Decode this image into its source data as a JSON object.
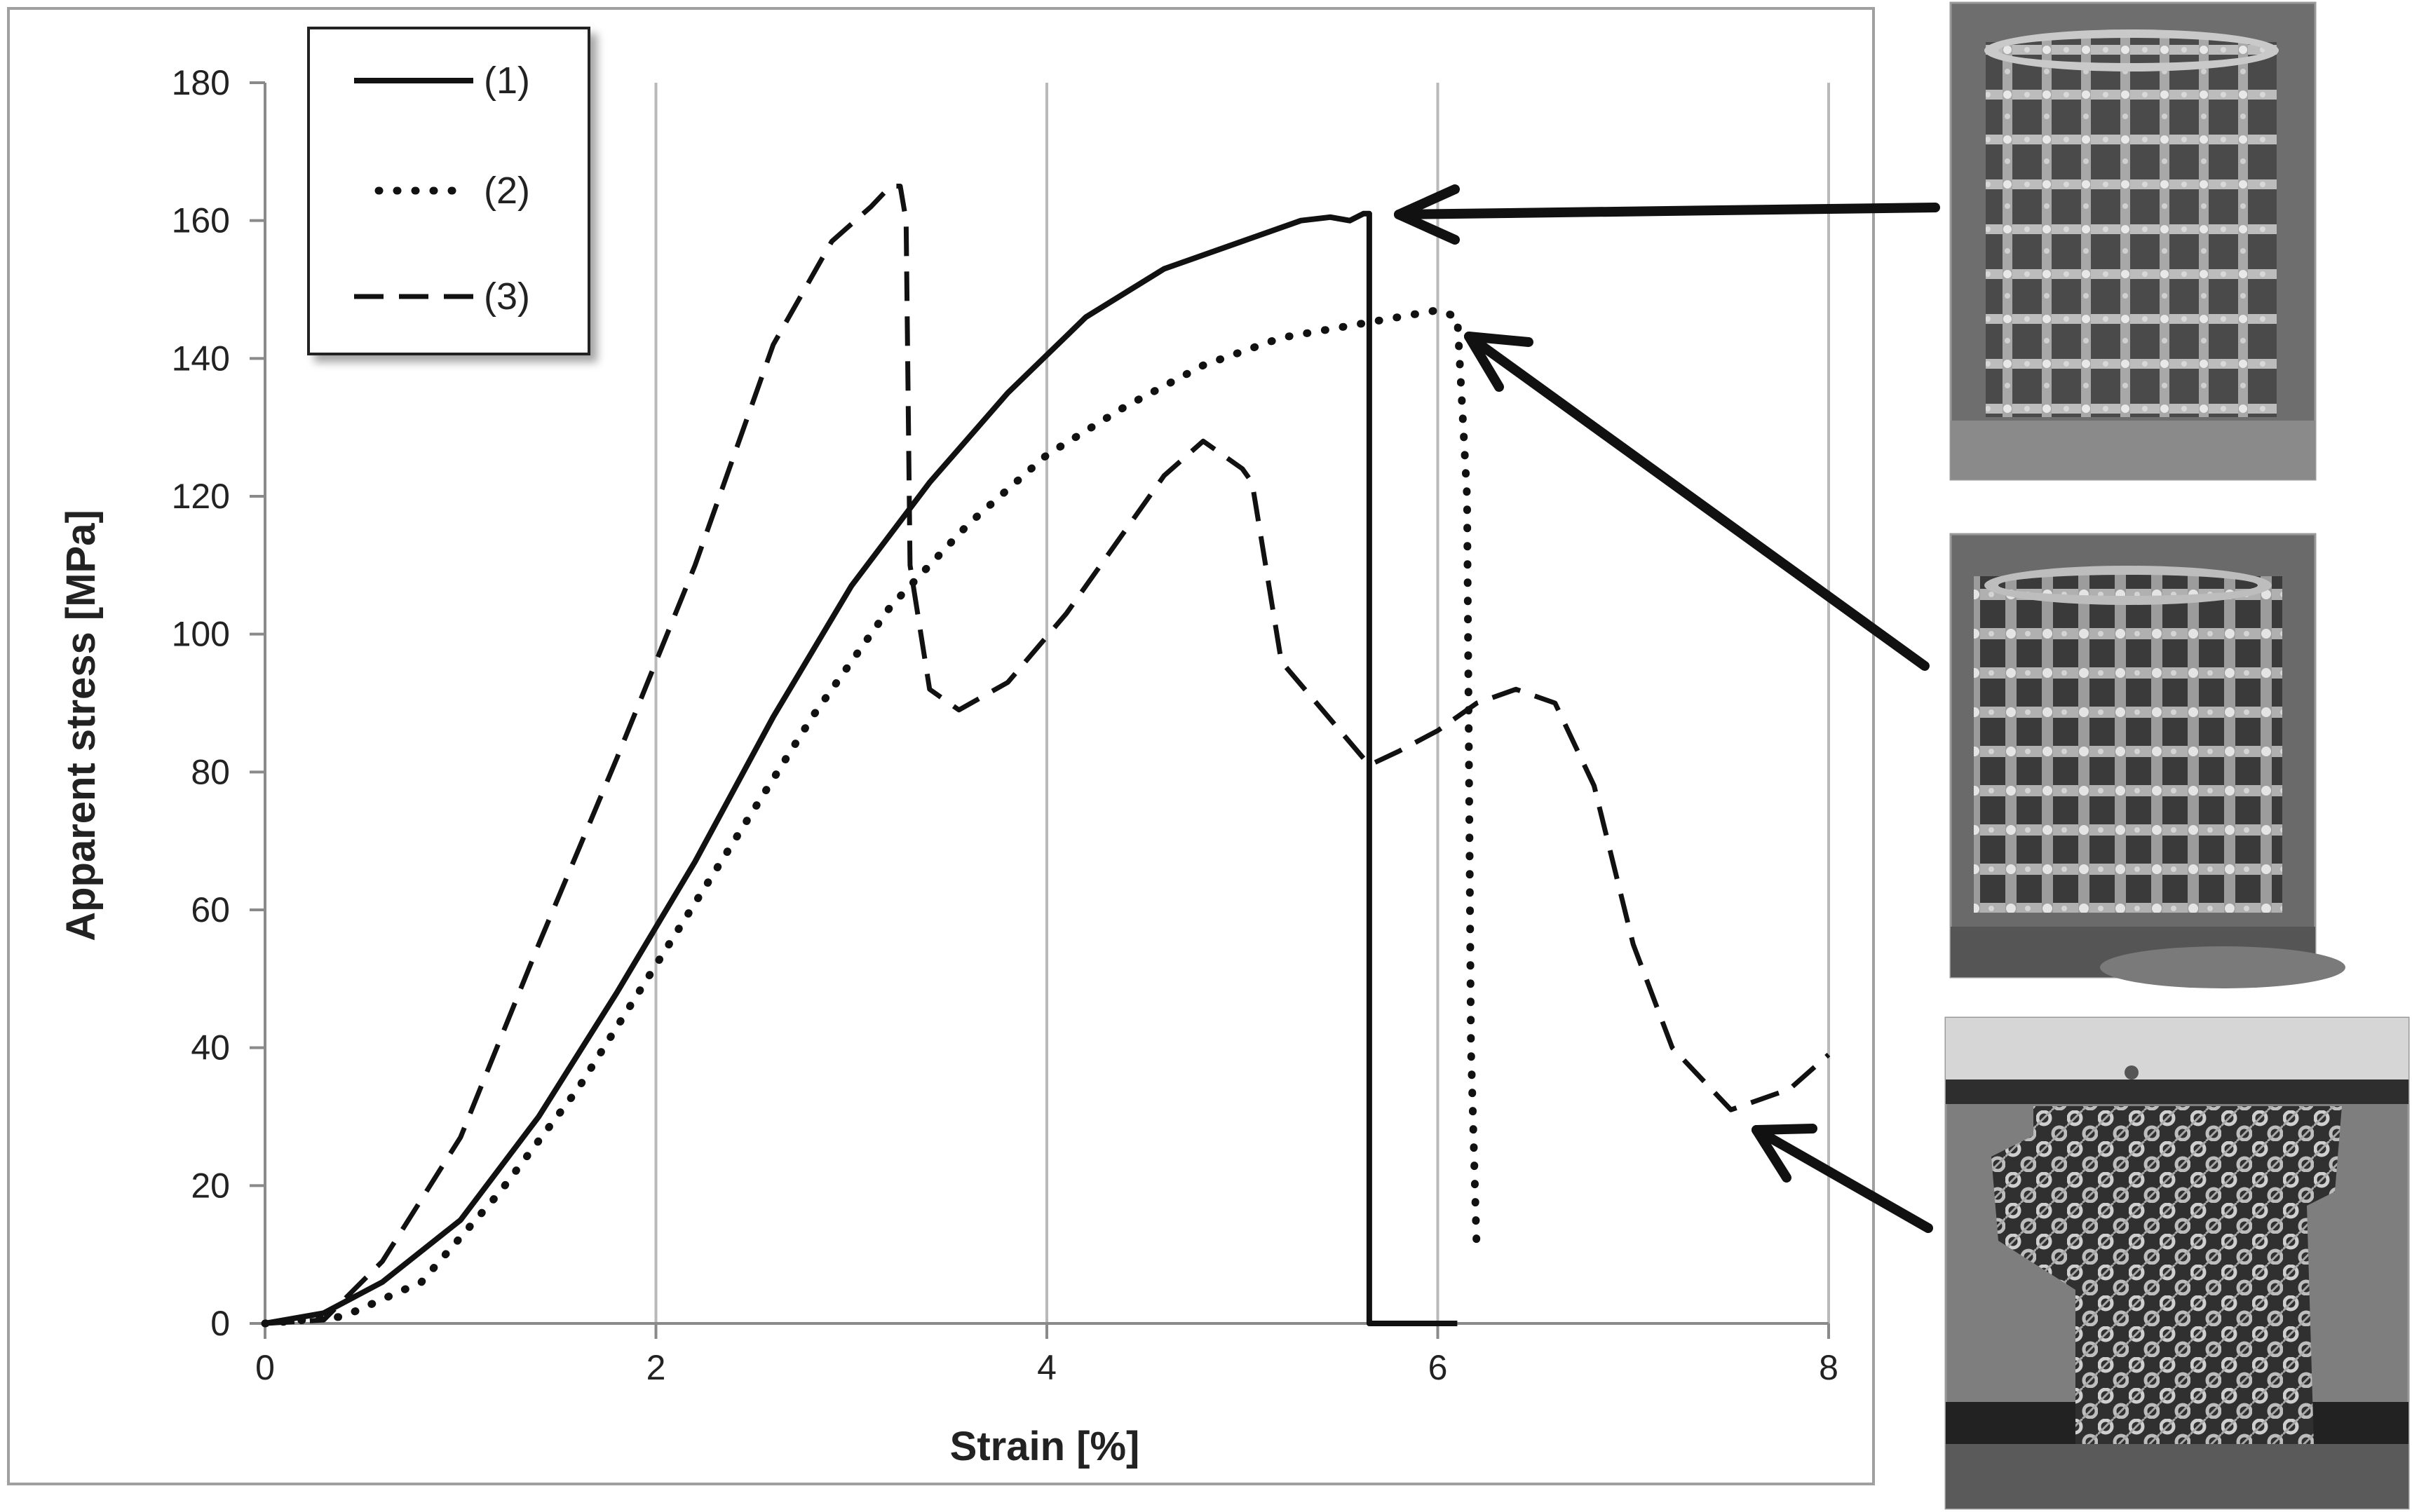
{
  "chart_data": {
    "type": "line",
    "title": "",
    "xlabel": "Strain [%]",
    "ylabel": "Apparent stress [MPa]",
    "xlim": [
      0,
      8
    ],
    "ylim": [
      0,
      180
    ],
    "x_ticks": [
      "0",
      "2",
      "4",
      "6",
      "8"
    ],
    "y_ticks": [
      "0",
      "20",
      "40",
      "60",
      "80",
      "100",
      "120",
      "140",
      "160",
      "180"
    ],
    "grid": "vertical",
    "legend_position": "top-left",
    "series": [
      {
        "name": "(1)",
        "style": "solid",
        "x": [
          0,
          0.3,
          0.6,
          1.0,
          1.4,
          1.8,
          2.2,
          2.6,
          3.0,
          3.4,
          3.8,
          4.2,
          4.6,
          5.0,
          5.3,
          5.45,
          5.55,
          5.62,
          5.65,
          5.65,
          5.65,
          6.1
        ],
        "y": [
          0,
          1.5,
          6,
          15,
          30,
          48,
          67,
          88,
          107,
          122,
          135,
          146,
          153,
          157,
          160,
          160.5,
          160,
          161,
          161,
          0,
          0,
          0
        ]
      },
      {
        "name": "(2)",
        "style": "dotted",
        "x": [
          0,
          0.4,
          0.8,
          1.2,
          1.6,
          2.0,
          2.4,
          2.8,
          3.2,
          3.6,
          4.0,
          4.4,
          4.8,
          5.2,
          5.6,
          6.0,
          6.1,
          6.15,
          6.17,
          6.2
        ],
        "y": [
          0,
          1,
          6,
          19,
          34,
          52,
          70,
          88,
          104,
          116,
          126,
          133,
          139,
          143,
          145,
          147,
          146,
          120,
          40,
          10
        ]
      },
      {
        "name": "(3)",
        "style": "dashed",
        "x": [
          0,
          0.3,
          0.6,
          1.0,
          1.4,
          1.8,
          2.2,
          2.6,
          2.9,
          3.1,
          3.2,
          3.25,
          3.28,
          3.3,
          3.4,
          3.55,
          3.8,
          4.1,
          4.4,
          4.6,
          4.8,
          5.0,
          5.05,
          5.2,
          5.5,
          5.65,
          5.8,
          6.0,
          6.2,
          6.4,
          6.6,
          6.8,
          7.0,
          7.2,
          7.5,
          7.8,
          8.0
        ],
        "y": [
          0,
          0.5,
          9,
          27,
          55,
          82,
          110,
          142,
          157,
          162,
          165,
          165,
          160,
          110,
          92,
          89,
          93,
          103,
          115,
          123,
          128,
          124,
          122,
          96,
          86,
          81,
          83,
          86,
          90,
          92,
          90,
          78,
          55,
          40,
          31,
          34,
          39
        ]
      }
    ]
  },
  "photos": [
    {
      "name": "specimen-1",
      "description_icon": "lattice-cylinder-intact"
    },
    {
      "name": "specimen-2",
      "description_icon": "lattice-cylinder-compressed"
    },
    {
      "name": "specimen-3",
      "description_icon": "lattice-cylinder-collapsed"
    }
  ],
  "colors": {
    "line": "#111111",
    "grid": "#b9b9b9",
    "frame": "#a0a0a0",
    "photo_bg": "#6a6a6a"
  }
}
